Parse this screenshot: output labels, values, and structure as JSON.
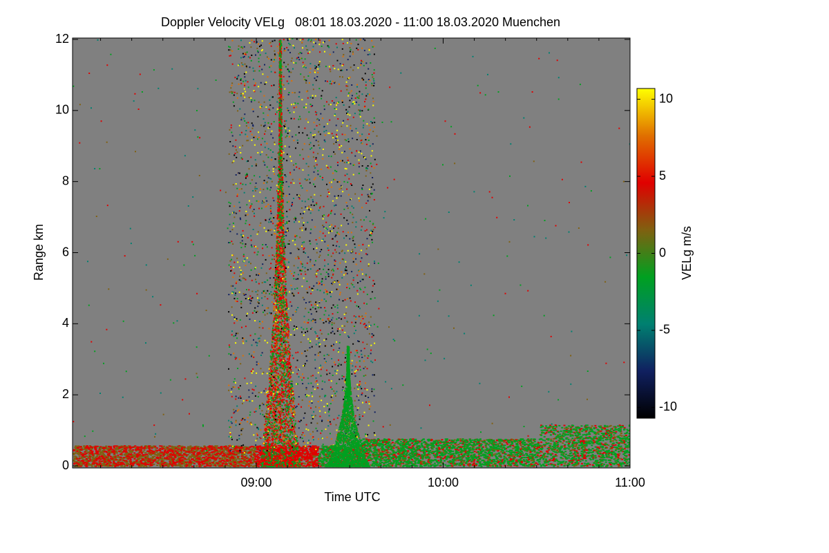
{
  "chart_data": {
    "type": "heatmap",
    "title": "Doppler Velocity VELg   08:01 18.03.2020 - 11:00 18.03.2020 Muenchen",
    "x_label": "Time UTC",
    "y_label": "Range km",
    "colorbar_label": "VELg m/s",
    "xlim": [
      481,
      660
    ],
    "xticks": [
      {
        "value": 540,
        "label": "09:00"
      },
      {
        "value": 600,
        "label": "10:00"
      },
      {
        "value": 660,
        "label": "11:00"
      }
    ],
    "ylim": [
      0,
      12
    ],
    "yticks": [
      0,
      2,
      4,
      6,
      8,
      10,
      12
    ],
    "zlim": [
      -10.7,
      10.7
    ],
    "zticks": [
      -10,
      -5,
      0,
      5,
      10
    ],
    "colormap": [
      "#000000",
      "#102060",
      "#008070",
      "#00a020",
      "#806010",
      "#e00000",
      "#e07000",
      "#ffff00"
    ],
    "background": "#808080"
  }
}
